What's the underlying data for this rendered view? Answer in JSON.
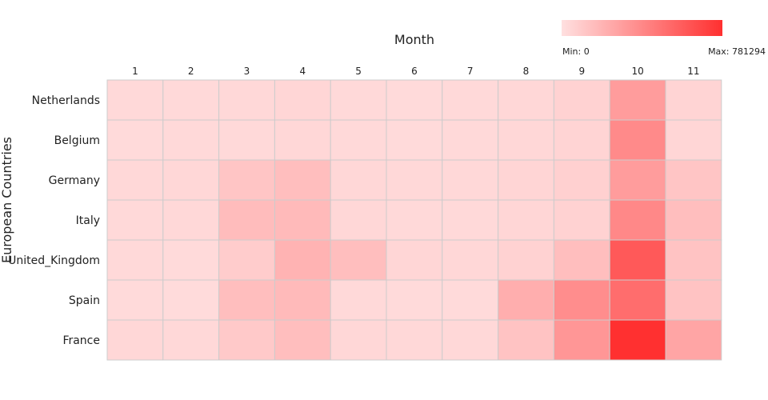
{
  "chart_data": {
    "type": "heatmap",
    "xlabel": "Month",
    "ylabel": "European Countries",
    "x": [
      "1",
      "2",
      "3",
      "4",
      "5",
      "6",
      "7",
      "8",
      "9",
      "10",
      "11"
    ],
    "y": [
      "Netherlands",
      "Belgium",
      "Germany",
      "Italy",
      "United_Kingdom",
      "Spain",
      "France"
    ],
    "values": [
      [
        30000,
        32000,
        35000,
        45000,
        30000,
        28000,
        30000,
        40000,
        60000,
        300000,
        55000
      ],
      [
        28000,
        30000,
        33000,
        42000,
        29000,
        28000,
        29000,
        38000,
        55000,
        380000,
        45000
      ],
      [
        35000,
        38000,
        120000,
        150000,
        40000,
        35000,
        35000,
        50000,
        70000,
        300000,
        120000
      ],
      [
        30000,
        35000,
        160000,
        170000,
        40000,
        33000,
        33000,
        45000,
        60000,
        390000,
        150000
      ],
      [
        30000,
        25000,
        90000,
        200000,
        150000,
        45000,
        40000,
        60000,
        150000,
        600000,
        130000
      ],
      [
        28000,
        22000,
        150000,
        170000,
        30000,
        28000,
        28000,
        220000,
        370000,
        510000,
        130000
      ],
      [
        40000,
        35000,
        100000,
        150000,
        40000,
        35000,
        35000,
        130000,
        330000,
        781294,
        260000
      ]
    ],
    "color_min": "#ffe0e0",
    "color_max": "#ff3030",
    "legend": {
      "min_label": "Min: 0",
      "max_label": "Max: 781294",
      "min_value": 0,
      "max_value": 781294,
      "placement": "top-right"
    },
    "grid_color": "#cccccc"
  }
}
